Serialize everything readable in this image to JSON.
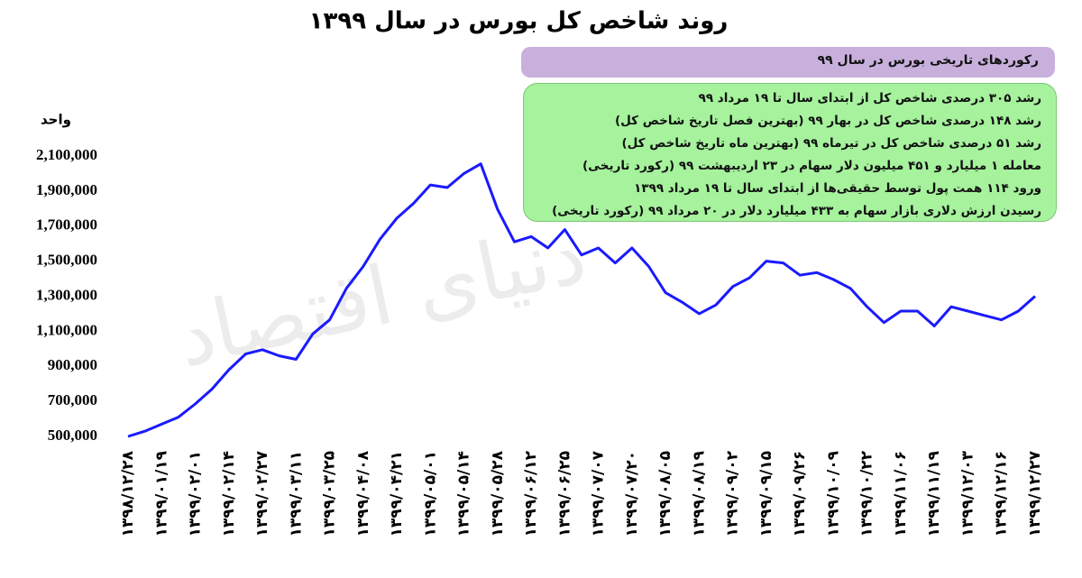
{
  "chart_data": {
    "type": "line",
    "title": "روند شاخص کل بورس در سال ۱۳۹۹",
    "y_label": "واحد",
    "watermark": "دنیای اقتصاد",
    "box_title": "رکوردهای تاریخی بورس در سال ۹۹",
    "box_lines": [
      "رشد ۳۰۵ درصدی شاخص کل از ابتدای سال تا ۱۹ مرداد ۹۹",
      "رشد ۱۴۸ درصدی شاخص کل در بهار ۹۹ (بهترین فصل تاریخ شاخص کل)",
      "رشد ۵۱ درصدی شاخص کل در تیرماه ۹۹ (بهترین ماه تاریخ شاخص کل)",
      "معامله ۱ میلیارد و ۴۵۱ میلیون دلار سهام در ۲۳ اردیبهشت ۹۹ (رکورد تاریخی)",
      "ورود ۱۱۴ همت پول توسط حقیقی‌ها از ابتدای سال تا ۱۹ مرداد ۱۳۹۹",
      "رسیدن ارزش دلاری بازار سهام به ۴۳۳ میلیارد دلار در ۲۰ مرداد ۹۹ (رکورد تاریخی)"
    ],
    "categories": [
      "۱۳۹۸/۱۲/۲۸",
      null,
      "۱۳۹۹/۰۱/۱۹",
      null,
      "۱۳۹۹/۰۲/۰۱",
      null,
      "۱۳۹۹/۰۲/۱۴",
      null,
      "۱۳۹۹/۰۲/۲۷",
      null,
      "۱۳۹۹/۰۳/۱۱",
      null,
      "۱۳۹۹/۰۳/۲۵",
      null,
      "۱۳۹۹/۰۴/۰۸",
      null,
      "۱۳۹۹/۰۴/۲۱",
      null,
      "۱۳۹۹/۰۵/۰۱",
      null,
      "۱۳۹۹/۰۵/۱۴",
      null,
      "۱۳۹۹/۰۵/۲۸",
      null,
      "۱۳۹۹/۰۶/۱۲",
      null,
      "۱۳۹۹/۰۶/۲۵",
      null,
      "۱۳۹۹/۰۷/۰۷",
      null,
      "۱۳۹۹/۰۷/۲۰",
      null,
      "۱۳۹۹/۰۸/۰۵",
      null,
      "۱۳۹۹/۰۸/۱۹",
      null,
      "۱۳۹۹/۰۹/۰۲",
      null,
      "۱۳۹۹/۰۹/۱۵",
      null,
      "۱۳۹۹/۰۹/۲۶",
      null,
      "۱۳۹۹/۱۰/۰۹",
      null,
      "۱۳۹۹/۱۰/۲۲",
      null,
      "۱۳۹۹/۱۱/۰۶",
      null,
      "۱۳۹۹/۱۱/۱۹",
      null,
      "۱۳۹۹/۱۲/۰۳",
      null,
      "۱۳۹۹/۱۲/۱۶",
      null,
      "۱۳۹۹/۱۲/۲۷"
    ],
    "values": [
      500000,
      530000,
      570000,
      610000,
      685000,
      770000,
      880000,
      970000,
      995000,
      960000,
      940000,
      1085000,
      1165000,
      1345000,
      1470000,
      1625000,
      1745000,
      1830000,
      1935000,
      1920000,
      2000000,
      2055000,
      1795000,
      1610000,
      1640000,
      1575000,
      1680000,
      1535000,
      1575000,
      1490000,
      1575000,
      1470000,
      1320000,
      1265000,
      1200000,
      1250000,
      1355000,
      1405000,
      1500000,
      1490000,
      1420000,
      1435000,
      1395000,
      1345000,
      1240000,
      1150000,
      1215000,
      1215000,
      1130000,
      1240000,
      1215000,
      1190000,
      1165000,
      1215000,
      1300000
    ],
    "color": "#1a1aff",
    "ylim": [
      500000,
      2100000
    ],
    "yticks": [
      {
        "value": 500000,
        "label": "500,000"
      },
      {
        "value": 700000,
        "label": "700,000"
      },
      {
        "value": 900000,
        "label": "900,000"
      },
      {
        "value": 1100000,
        "label": "1,100,000"
      },
      {
        "value": 1300000,
        "label": "1,300,000"
      },
      {
        "value": 1500000,
        "label": "1,500,000"
      },
      {
        "value": 1700000,
        "label": "1,700,000"
      },
      {
        "value": 1900000,
        "label": "1,900,000"
      },
      {
        "value": 2100000,
        "label": "2,100,000"
      }
    ],
    "grid": false
  }
}
